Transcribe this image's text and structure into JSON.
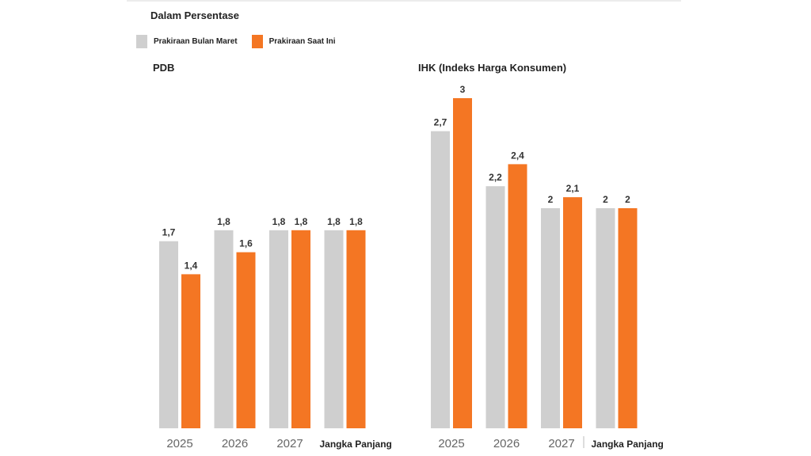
{
  "subtitle": "Dalam Persentase",
  "legend": [
    "Prakiraan Bulan Maret",
    "Prakiraan Saat Ini"
  ],
  "colors": {
    "march": "#cfcfcf",
    "current": "#f47623"
  },
  "chart_data": [
    {
      "type": "bar",
      "title": "PDB",
      "categories": [
        "2025",
        "2026",
        "2027",
        "Jangka Panjang"
      ],
      "series": [
        {
          "name": "Prakiraan Bulan Maret",
          "values": [
            1.7,
            1.8,
            1.8,
            1.8
          ],
          "labels": [
            "1,7",
            "1,8",
            "1,8",
            "1,8"
          ]
        },
        {
          "name": "Prakiraan Saat Ini",
          "values": [
            1.4,
            1.6,
            1.8,
            1.8
          ],
          "labels": [
            "1,4",
            "1,6",
            "1,8",
            "1,8"
          ]
        }
      ],
      "ylim": [
        0,
        3.2
      ]
    },
    {
      "type": "bar",
      "title": "IHK (Indeks Harga Konsumen)",
      "categories": [
        "2025",
        "2026",
        "2027",
        "Jangka Panjang"
      ],
      "series": [
        {
          "name": "Prakiraan Bulan Maret",
          "values": [
            2.7,
            2.2,
            2,
            2
          ],
          "labels": [
            "2,7",
            "2,2",
            "2",
            "2"
          ]
        },
        {
          "name": "Prakiraan Saat Ini",
          "values": [
            3,
            2.4,
            2.1,
            2
          ],
          "labels": [
            "3",
            "2,4",
            "2,1",
            "2"
          ]
        }
      ],
      "ylim": [
        0,
        3.2
      ]
    }
  ]
}
